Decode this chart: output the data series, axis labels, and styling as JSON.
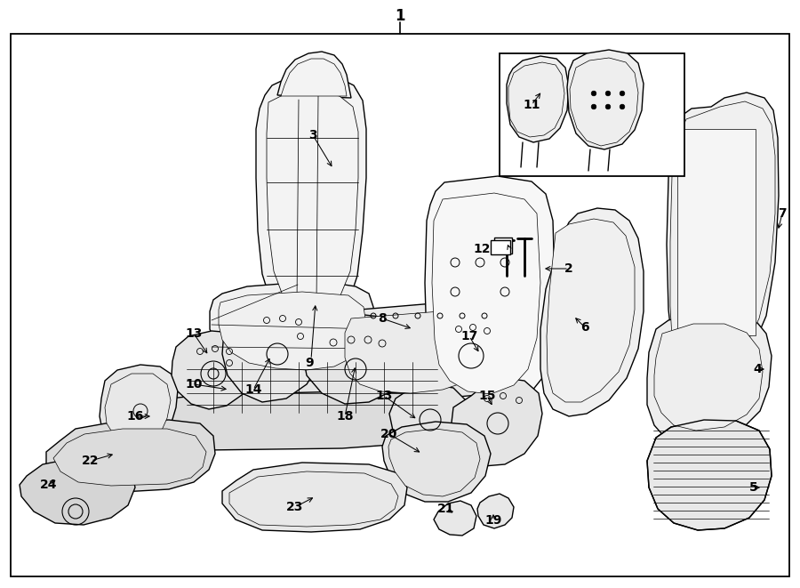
{
  "bg_color": "#ffffff",
  "line_color": "#000000",
  "fig_width": 9.0,
  "fig_height": 6.61,
  "dpi": 100,
  "lw": 1.0,
  "lw_thin": 0.5,
  "lw_thick": 1.5,
  "fc_light": "#f5f5f5",
  "fc_mid": "#eeeeee",
  "fc_dark": "#e0e0e0",
  "label_fontsize": 10,
  "title_fontsize": 12,
  "border": [
    12,
    38,
    876,
    610
  ]
}
